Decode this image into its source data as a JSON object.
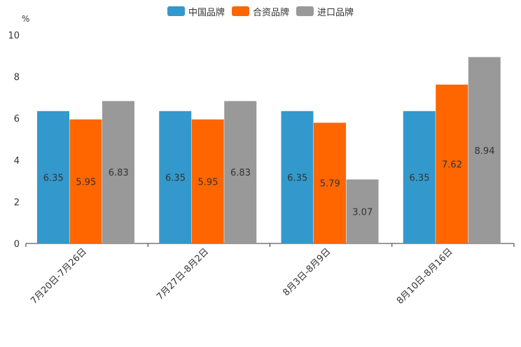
{
  "chart_data": {
    "type": "bar",
    "unit": "%",
    "categories": [
      "7月20日-7月26日",
      "7月27日-8月2日",
      "8月3日-8月9日",
      "8月10日-8月16日"
    ],
    "series": [
      {
        "name": "中国品牌",
        "color": "#3399cc",
        "values": [
          6.35,
          6.35,
          6.35,
          6.35
        ]
      },
      {
        "name": "合资品牌",
        "color": "#ff6600",
        "values": [
          5.95,
          5.95,
          5.79,
          7.62
        ]
      },
      {
        "name": "进口品牌",
        "color": "#999999",
        "values": [
          6.83,
          6.83,
          3.07,
          8.94
        ]
      }
    ],
    "ylim": [
      0,
      10
    ],
    "yticks": [
      0,
      2,
      4,
      6,
      8,
      10
    ],
    "legend_position": "top-center",
    "grid": false
  }
}
